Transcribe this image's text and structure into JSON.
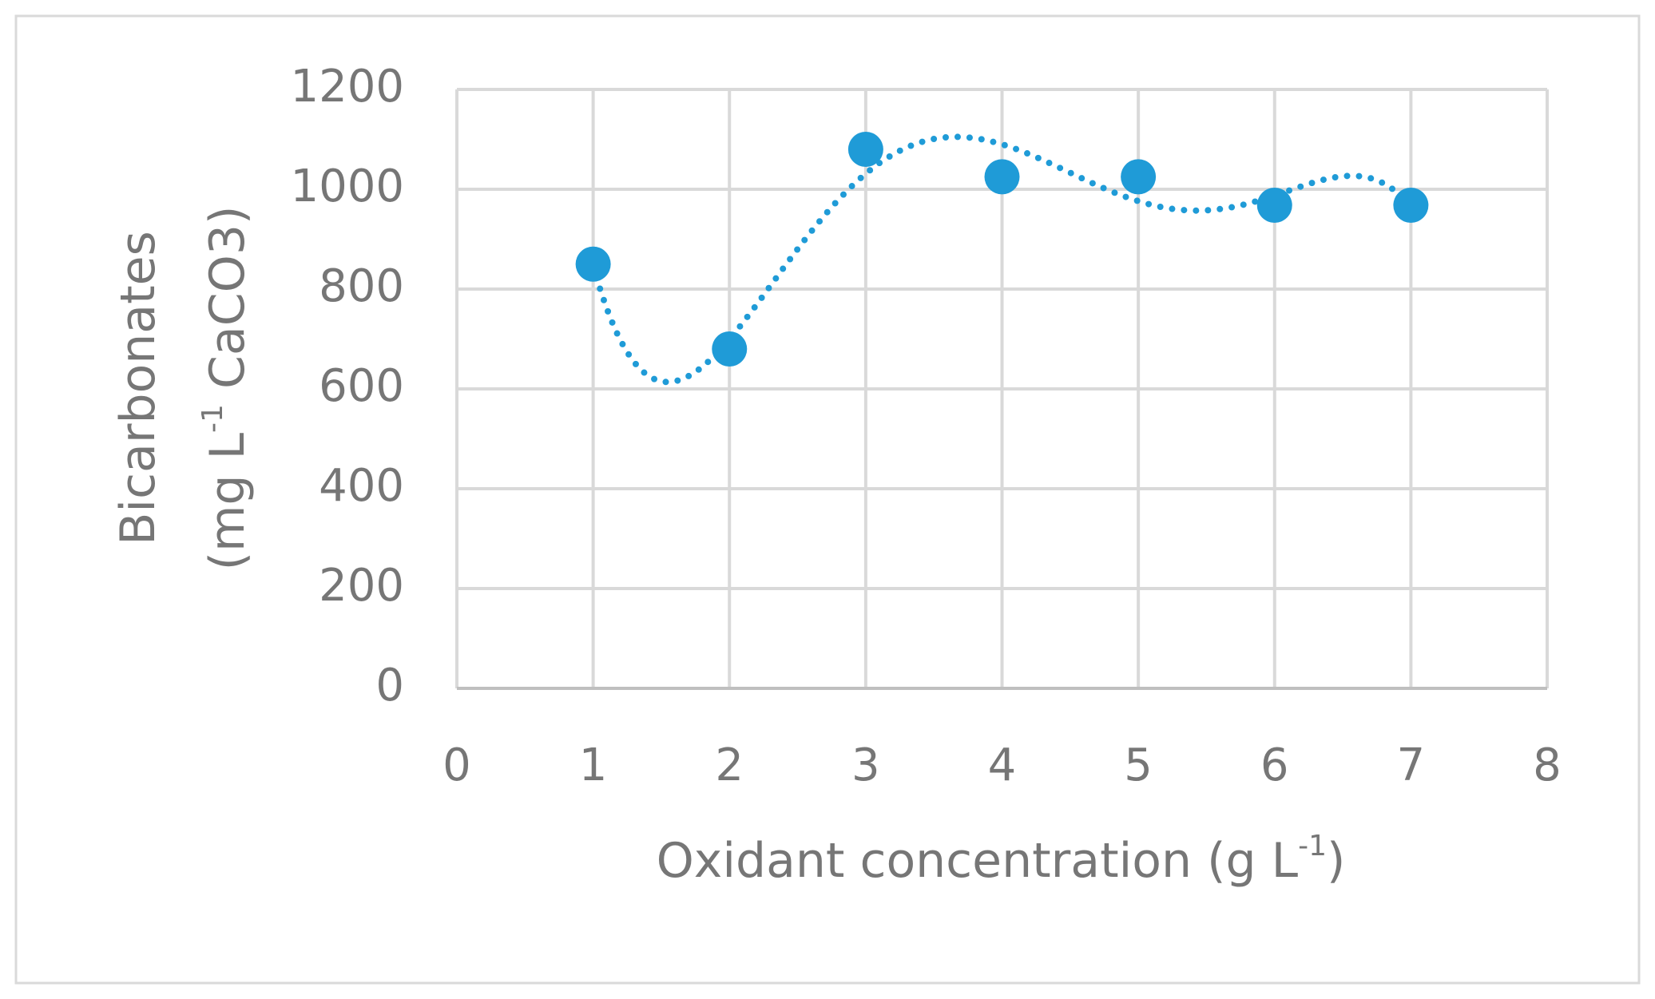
{
  "chart_data": {
    "type": "scatter",
    "x_label": [
      "Oxidant concentration (g L",
      "-1",
      ")"
    ],
    "y_label": [
      [
        "Bicarbonates"
      ],
      [
        "(mg L",
        "-1",
        " CaCO3)"
      ]
    ],
    "series": [
      {
        "color": "#1f9bd7",
        "x": [
          1,
          2,
          3,
          4,
          5,
          6,
          7
        ],
        "values": [
          850,
          680,
          1080,
          1025,
          1025,
          968,
          968
        ]
      }
    ],
    "xlim": [
      0,
      8
    ],
    "xticks": [
      0,
      1,
      2,
      3,
      4,
      5,
      6,
      7,
      8
    ],
    "ylim": [
      0,
      1200
    ],
    "yticks": [
      0,
      200,
      400,
      600,
      800,
      1000,
      1200
    ],
    "grid": true,
    "trendline": "polynomial",
    "trendline_order": 5
  }
}
